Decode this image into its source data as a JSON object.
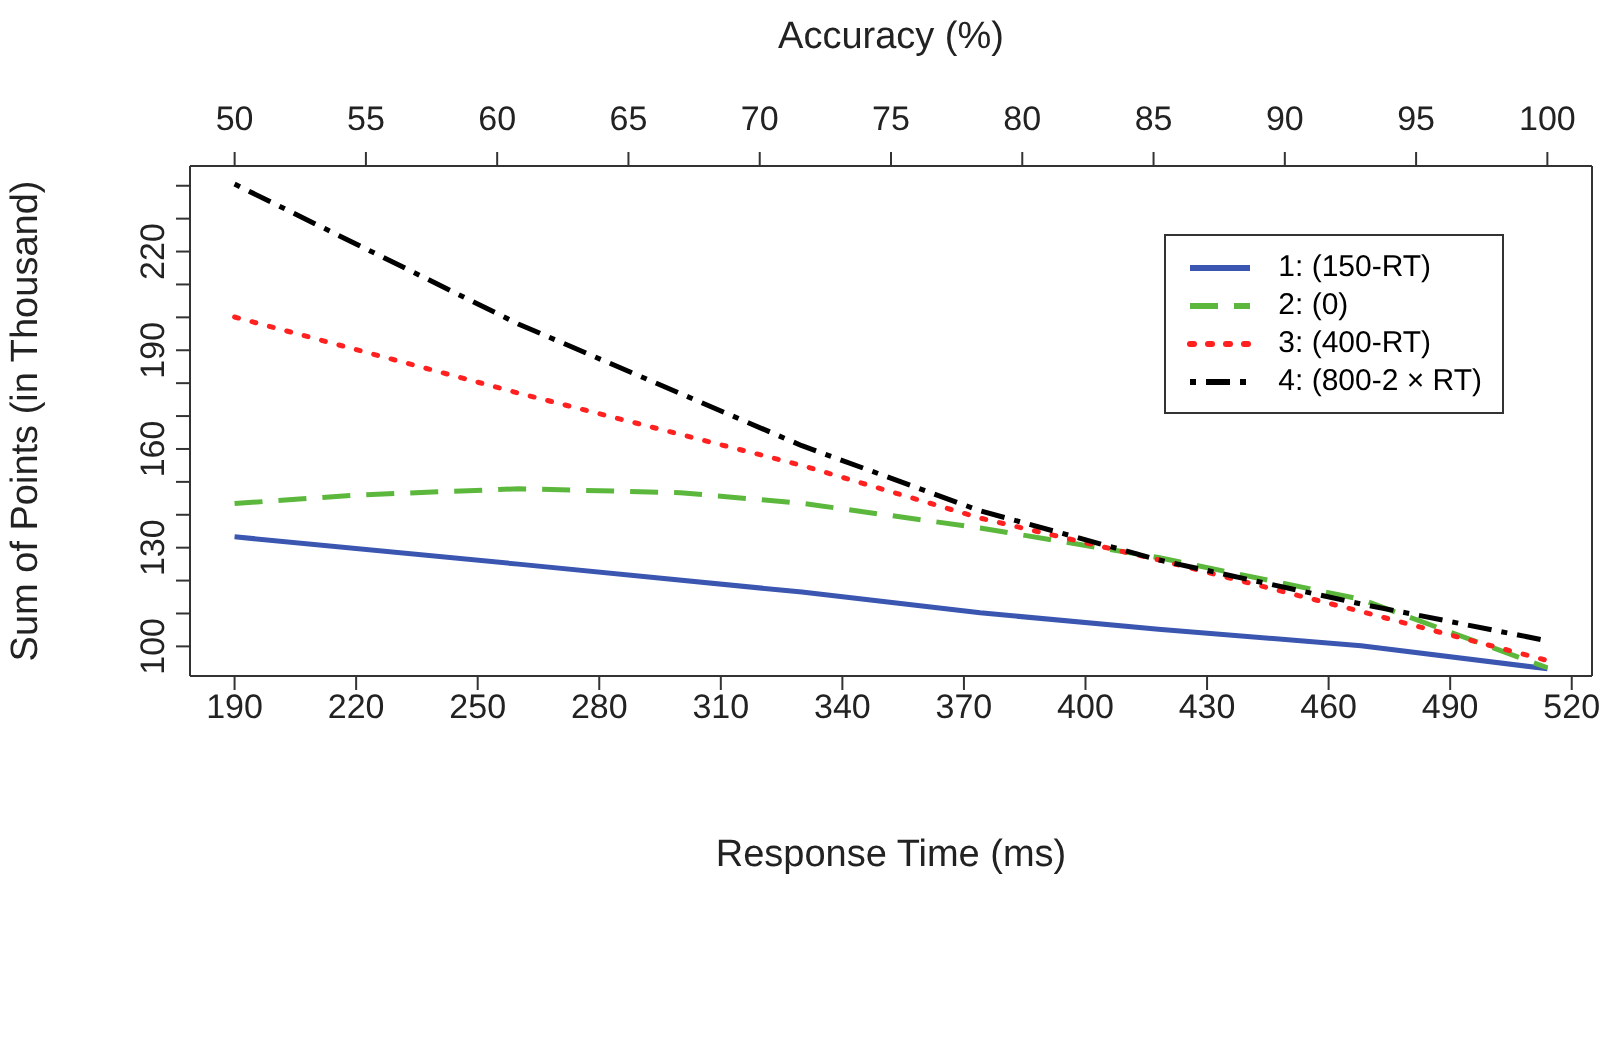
{
  "chart_data": {
    "type": "line",
    "xlabel": "Response Time (ms)",
    "x2label": "Accuracy (%)",
    "ylabel": "Sum of Points (in Thousand)",
    "xlim": [
      179,
      525
    ],
    "xticks": [
      190,
      220,
      250,
      280,
      310,
      340,
      370,
      400,
      430,
      460,
      490,
      520
    ],
    "x2lim": [
      48.3,
      101.7
    ],
    "x2ticks": [
      50,
      55,
      60,
      65,
      70,
      75,
      80,
      85,
      90,
      95,
      100
    ],
    "ylim": [
      91,
      246
    ],
    "yticks": [
      100,
      {
        "value": 110,
        "label": null
      },
      {
        "value": 120,
        "label": null
      },
      130,
      {
        "value": 140,
        "label": null
      },
      {
        "value": 150,
        "label": null
      },
      160,
      {
        "value": 170,
        "label": null
      },
      {
        "value": 180,
        "label": null
      },
      190,
      {
        "value": 200,
        "label": null
      },
      {
        "value": 210,
        "label": null
      },
      220,
      {
        "value": 230,
        "label": null
      },
      {
        "value": 240,
        "label": null
      }
    ],
    "grid": false,
    "legend": "top right",
    "series": [
      {
        "name": "1: (150-RT)",
        "color": "#3a56b0",
        "line_style": "solid",
        "x": [
          190,
          260,
          330,
          374,
          418,
          468,
          514
        ],
        "values": [
          133.3,
          125,
          116.5,
          110.2,
          105.2,
          100.2,
          93.2
        ]
      },
      {
        "name": "2: (0)",
        "color": "#5cb83c",
        "line_style": "dashed",
        "x": [
          190,
          220,
          260,
          300,
          330,
          374,
          418,
          468,
          514
        ],
        "values": [
          143.4,
          146,
          147.9,
          146.7,
          143.5,
          136,
          127,
          114.3,
          93.5
        ]
      },
      {
        "name": "3: (400-RT)",
        "color": "#ff2020",
        "line_style": "dotted",
        "x": [
          190,
          260,
          330,
          374,
          418,
          468,
          514
        ],
        "values": [
          200.1,
          177,
          155,
          139,
          126.3,
          110.6,
          95.7
        ]
      },
      {
        "name": "4: (800-2 × RT)",
        "color": "#000000",
        "line_style": "dashdot",
        "x": [
          190,
          260,
          330,
          374,
          418,
          468,
          514
        ],
        "values": [
          240.5,
          198,
          161,
          141.2,
          126.3,
          112.9,
          101.7
        ]
      }
    ]
  }
}
